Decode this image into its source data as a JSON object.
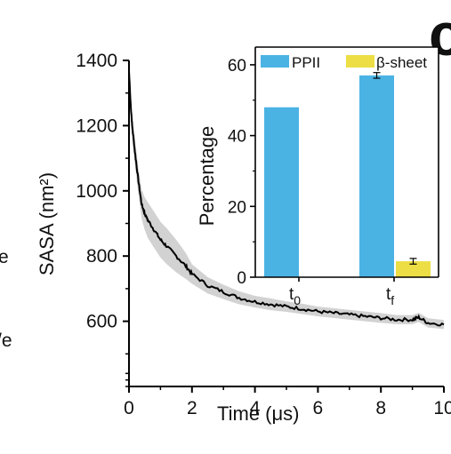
{
  "chart_data": [
    {
      "type": "line",
      "xlabel": "Time (μs)",
      "ylabel": "SASA (nm²)",
      "xlim": [
        0,
        10
      ],
      "ylim": [
        400,
        1400
      ],
      "x_ticks": [
        "0",
        "2",
        "4",
        "6",
        "8",
        "10"
      ],
      "y_ticks": [
        "600",
        "800",
        "1000",
        "1200",
        "1400"
      ],
      "series": [
        {
          "x": [
            0,
            0.05,
            0.1,
            0.2,
            0.3,
            0.4,
            0.5,
            0.6,
            0.8,
            1.0,
            1.2,
            1.5,
            1.8,
            2.0,
            2.5,
            3.0,
            3.5,
            4.0,
            4.5,
            5.0,
            5.5,
            6.0,
            6.5,
            7.0,
            7.5,
            8.0,
            8.5,
            9.0,
            9.2,
            9.5,
            10.0
          ],
          "y": [
            1370,
            1270,
            1200,
            1110,
            1030,
            960,
            930,
            910,
            880,
            850,
            830,
            800,
            770,
            745,
            710,
            690,
            672,
            660,
            652,
            645,
            638,
            630,
            625,
            620,
            615,
            610,
            605,
            605,
            612,
            595,
            590
          ],
          "color": "#000000",
          "band_color": "#d2d2d2"
        }
      ],
      "band_halfwidth": [
        0,
        35,
        40,
        40,
        40,
        45,
        50,
        55,
        55,
        55,
        55,
        50,
        40,
        30,
        25,
        22,
        20,
        18,
        18,
        16,
        16,
        15,
        15,
        15,
        15,
        15,
        14,
        14,
        14,
        14,
        14
      ]
    },
    {
      "type": "bar",
      "categories": [
        "t0",
        "tf"
      ],
      "ylabel": "Percentage",
      "ylim": [
        0,
        65
      ],
      "y_ticks": [
        "0",
        "20",
        "40",
        "60"
      ],
      "series": [
        {
          "name": "PPII",
          "values": [
            48,
            57
          ],
          "errors": [
            0,
            0.8
          ],
          "color": "#4bb3e4"
        },
        {
          "name": "β-sheet",
          "values": [
            0,
            4.5
          ],
          "errors": [
            0,
            0.8
          ],
          "color": "#ecde44"
        }
      ],
      "legend": "top"
    }
  ],
  "inset": {
    "cat_main": [
      "t",
      "t"
    ],
    "cat_sub": [
      "0",
      "f"
    ]
  },
  "edge": {
    "panel_letter": "c",
    "frag1": "e",
    "frag2": "/e"
  }
}
